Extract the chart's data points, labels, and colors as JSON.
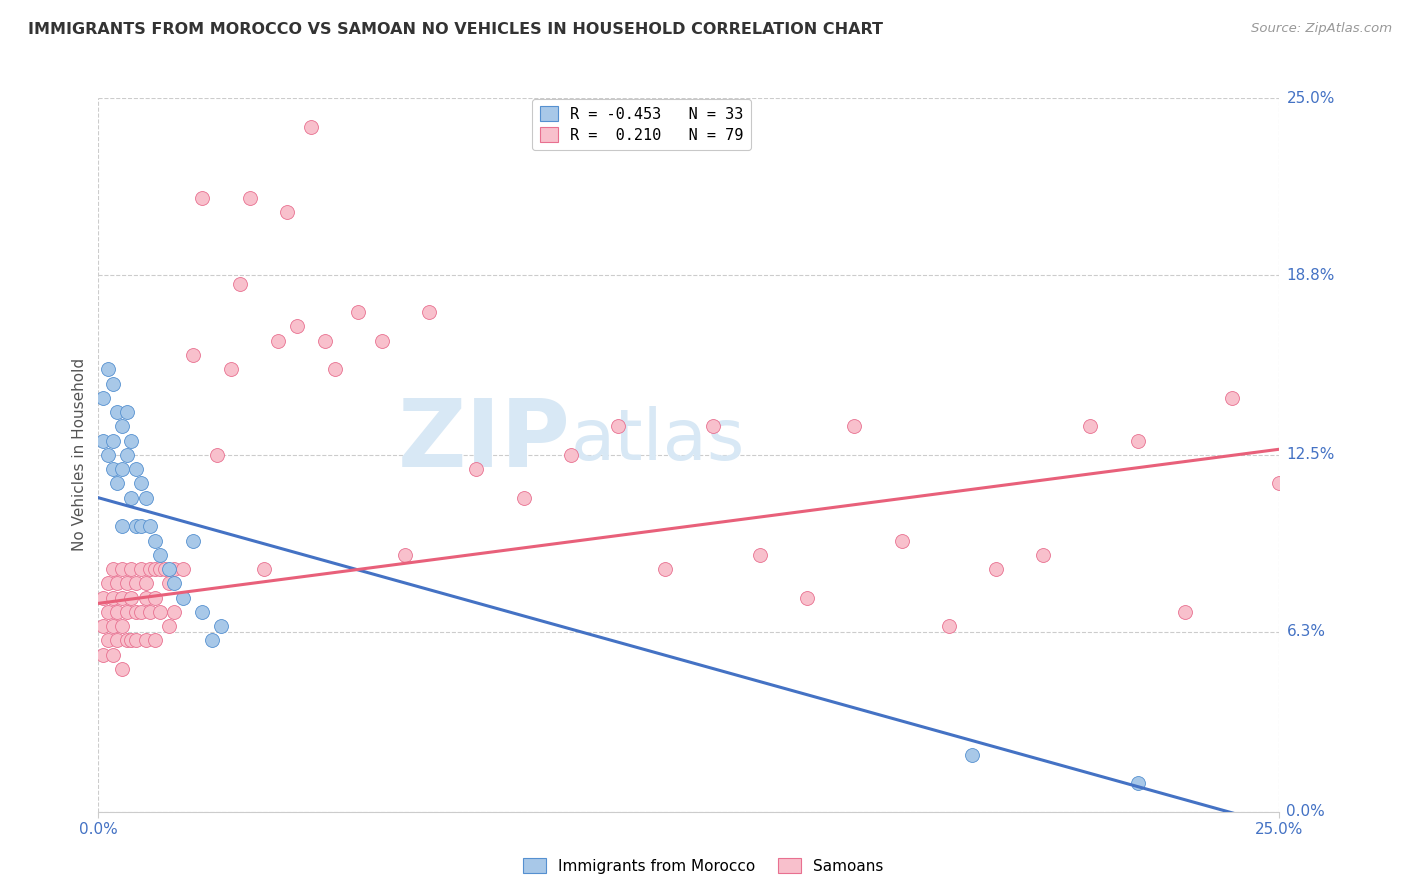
{
  "title": "IMMIGRANTS FROM MOROCCO VS SAMOAN NO VEHICLES IN HOUSEHOLD CORRELATION CHART",
  "source": "Source: ZipAtlas.com",
  "ylabel": "No Vehicles in Household",
  "ytick_values": [
    0.0,
    0.063,
    0.125,
    0.188,
    0.25
  ],
  "ytick_labels": [
    "0.0%",
    "6.3%",
    "12.5%",
    "18.8%",
    "25.0%"
  ],
  "xmin": 0.0,
  "xmax": 0.25,
  "ymin": 0.0,
  "ymax": 0.25,
  "legend_entry1": "R = -0.453   N = 33",
  "legend_entry2": "R =  0.210   N = 79",
  "legend_label1": "Immigrants from Morocco",
  "legend_label2": "Samoans",
  "blue_fill": "#A8C8E8",
  "pink_fill": "#F8C0CC",
  "blue_edge": "#5590D0",
  "pink_edge": "#E87090",
  "blue_line_color": "#4472C4",
  "pink_line_color": "#E8607A",
  "title_color": "#333333",
  "source_color": "#999999",
  "axis_label_color": "#4472C4",
  "watermark_text_color": "#D8E8F5",
  "grid_color": "#CCCCCC",
  "bg": "#FFFFFF",
  "blue_line_x0": 0.0,
  "blue_line_x1": 0.25,
  "blue_line_y0": 0.11,
  "blue_line_y1": -0.005,
  "pink_line_x0": 0.0,
  "pink_line_x1": 0.25,
  "pink_line_y0": 0.073,
  "pink_line_y1": 0.127,
  "blue_x": [
    0.001,
    0.001,
    0.002,
    0.002,
    0.003,
    0.003,
    0.003,
    0.004,
    0.004,
    0.005,
    0.005,
    0.005,
    0.006,
    0.006,
    0.007,
    0.007,
    0.008,
    0.008,
    0.009,
    0.009,
    0.01,
    0.011,
    0.012,
    0.013,
    0.015,
    0.016,
    0.018,
    0.02,
    0.022,
    0.024,
    0.026,
    0.185,
    0.22
  ],
  "blue_y": [
    0.145,
    0.13,
    0.155,
    0.125,
    0.15,
    0.13,
    0.12,
    0.14,
    0.115,
    0.135,
    0.12,
    0.1,
    0.14,
    0.125,
    0.13,
    0.11,
    0.12,
    0.1,
    0.115,
    0.1,
    0.11,
    0.1,
    0.095,
    0.09,
    0.085,
    0.08,
    0.075,
    0.095,
    0.07,
    0.06,
    0.065,
    0.02,
    0.01
  ],
  "pink_x": [
    0.001,
    0.001,
    0.001,
    0.002,
    0.002,
    0.002,
    0.003,
    0.003,
    0.003,
    0.003,
    0.004,
    0.004,
    0.004,
    0.005,
    0.005,
    0.005,
    0.005,
    0.006,
    0.006,
    0.006,
    0.007,
    0.007,
    0.007,
    0.008,
    0.008,
    0.008,
    0.009,
    0.009,
    0.01,
    0.01,
    0.01,
    0.011,
    0.011,
    0.012,
    0.012,
    0.012,
    0.013,
    0.013,
    0.014,
    0.015,
    0.015,
    0.016,
    0.016,
    0.018,
    0.02,
    0.022,
    0.025,
    0.028,
    0.03,
    0.032,
    0.035,
    0.038,
    0.04,
    0.042,
    0.045,
    0.048,
    0.05,
    0.055,
    0.06,
    0.065,
    0.07,
    0.08,
    0.09,
    0.1,
    0.11,
    0.12,
    0.13,
    0.14,
    0.15,
    0.16,
    0.17,
    0.18,
    0.19,
    0.2,
    0.21,
    0.22,
    0.23,
    0.24,
    0.25
  ],
  "pink_y": [
    0.075,
    0.065,
    0.055,
    0.08,
    0.07,
    0.06,
    0.085,
    0.075,
    0.065,
    0.055,
    0.08,
    0.07,
    0.06,
    0.085,
    0.075,
    0.065,
    0.05,
    0.08,
    0.07,
    0.06,
    0.085,
    0.075,
    0.06,
    0.08,
    0.07,
    0.06,
    0.085,
    0.07,
    0.08,
    0.075,
    0.06,
    0.085,
    0.07,
    0.085,
    0.075,
    0.06,
    0.085,
    0.07,
    0.085,
    0.08,
    0.065,
    0.085,
    0.07,
    0.085,
    0.16,
    0.215,
    0.125,
    0.155,
    0.185,
    0.215,
    0.085,
    0.165,
    0.21,
    0.17,
    0.24,
    0.165,
    0.155,
    0.175,
    0.165,
    0.09,
    0.175,
    0.12,
    0.11,
    0.125,
    0.135,
    0.085,
    0.135,
    0.09,
    0.075,
    0.135,
    0.095,
    0.065,
    0.085,
    0.09,
    0.135,
    0.13,
    0.07,
    0.145,
    0.115
  ]
}
